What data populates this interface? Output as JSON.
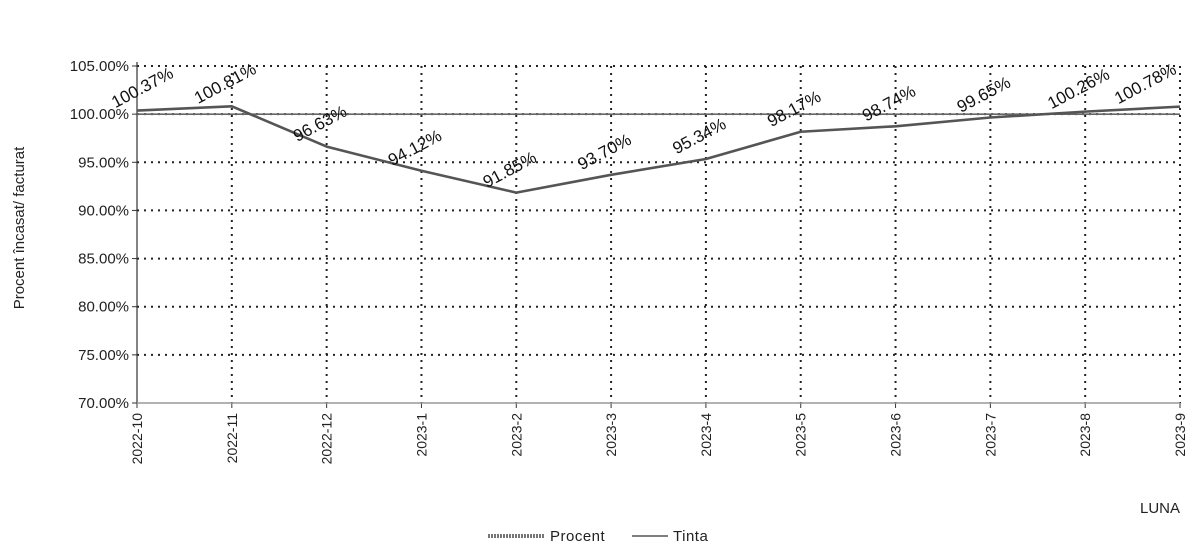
{
  "chart_data": {
    "type": "line",
    "title": "",
    "xlabel": "LUNA",
    "ylabel": "Procent încasat/ facturat",
    "ylim": [
      70,
      105
    ],
    "y_ticks": [
      "70.00%",
      "75.00%",
      "80.00%",
      "85.00%",
      "90.00%",
      "95.00%",
      "100.00%",
      "105.00%"
    ],
    "categories": [
      "2022-10",
      "2022-11",
      "2022-12",
      "2023-1",
      "2023-2",
      "2023-3",
      "2023-4",
      "2023-5",
      "2023-6",
      "2023-7",
      "2023-8",
      "2023-9"
    ],
    "series": [
      {
        "name": "Procent",
        "values": [
          100.37,
          100.81,
          96.63,
          94.12,
          91.85,
          93.7,
          95.34,
          98.17,
          98.74,
          99.65,
          100.26,
          100.78
        ],
        "labels": [
          "100.37%",
          "100.81%",
          "96.63%",
          "94.12%",
          "91.85%",
          "93.70%",
          "95.34%",
          "98.17%",
          "98.74%",
          "99.65%",
          "100.26%",
          "100.78%"
        ],
        "color": "#555555"
      },
      {
        "name": "Tinta",
        "values": [
          100,
          100,
          100,
          100,
          100,
          100,
          100,
          100,
          100,
          100,
          100,
          100
        ],
        "color": "#666666"
      }
    ],
    "grid": true,
    "legend_position": "bottom"
  }
}
